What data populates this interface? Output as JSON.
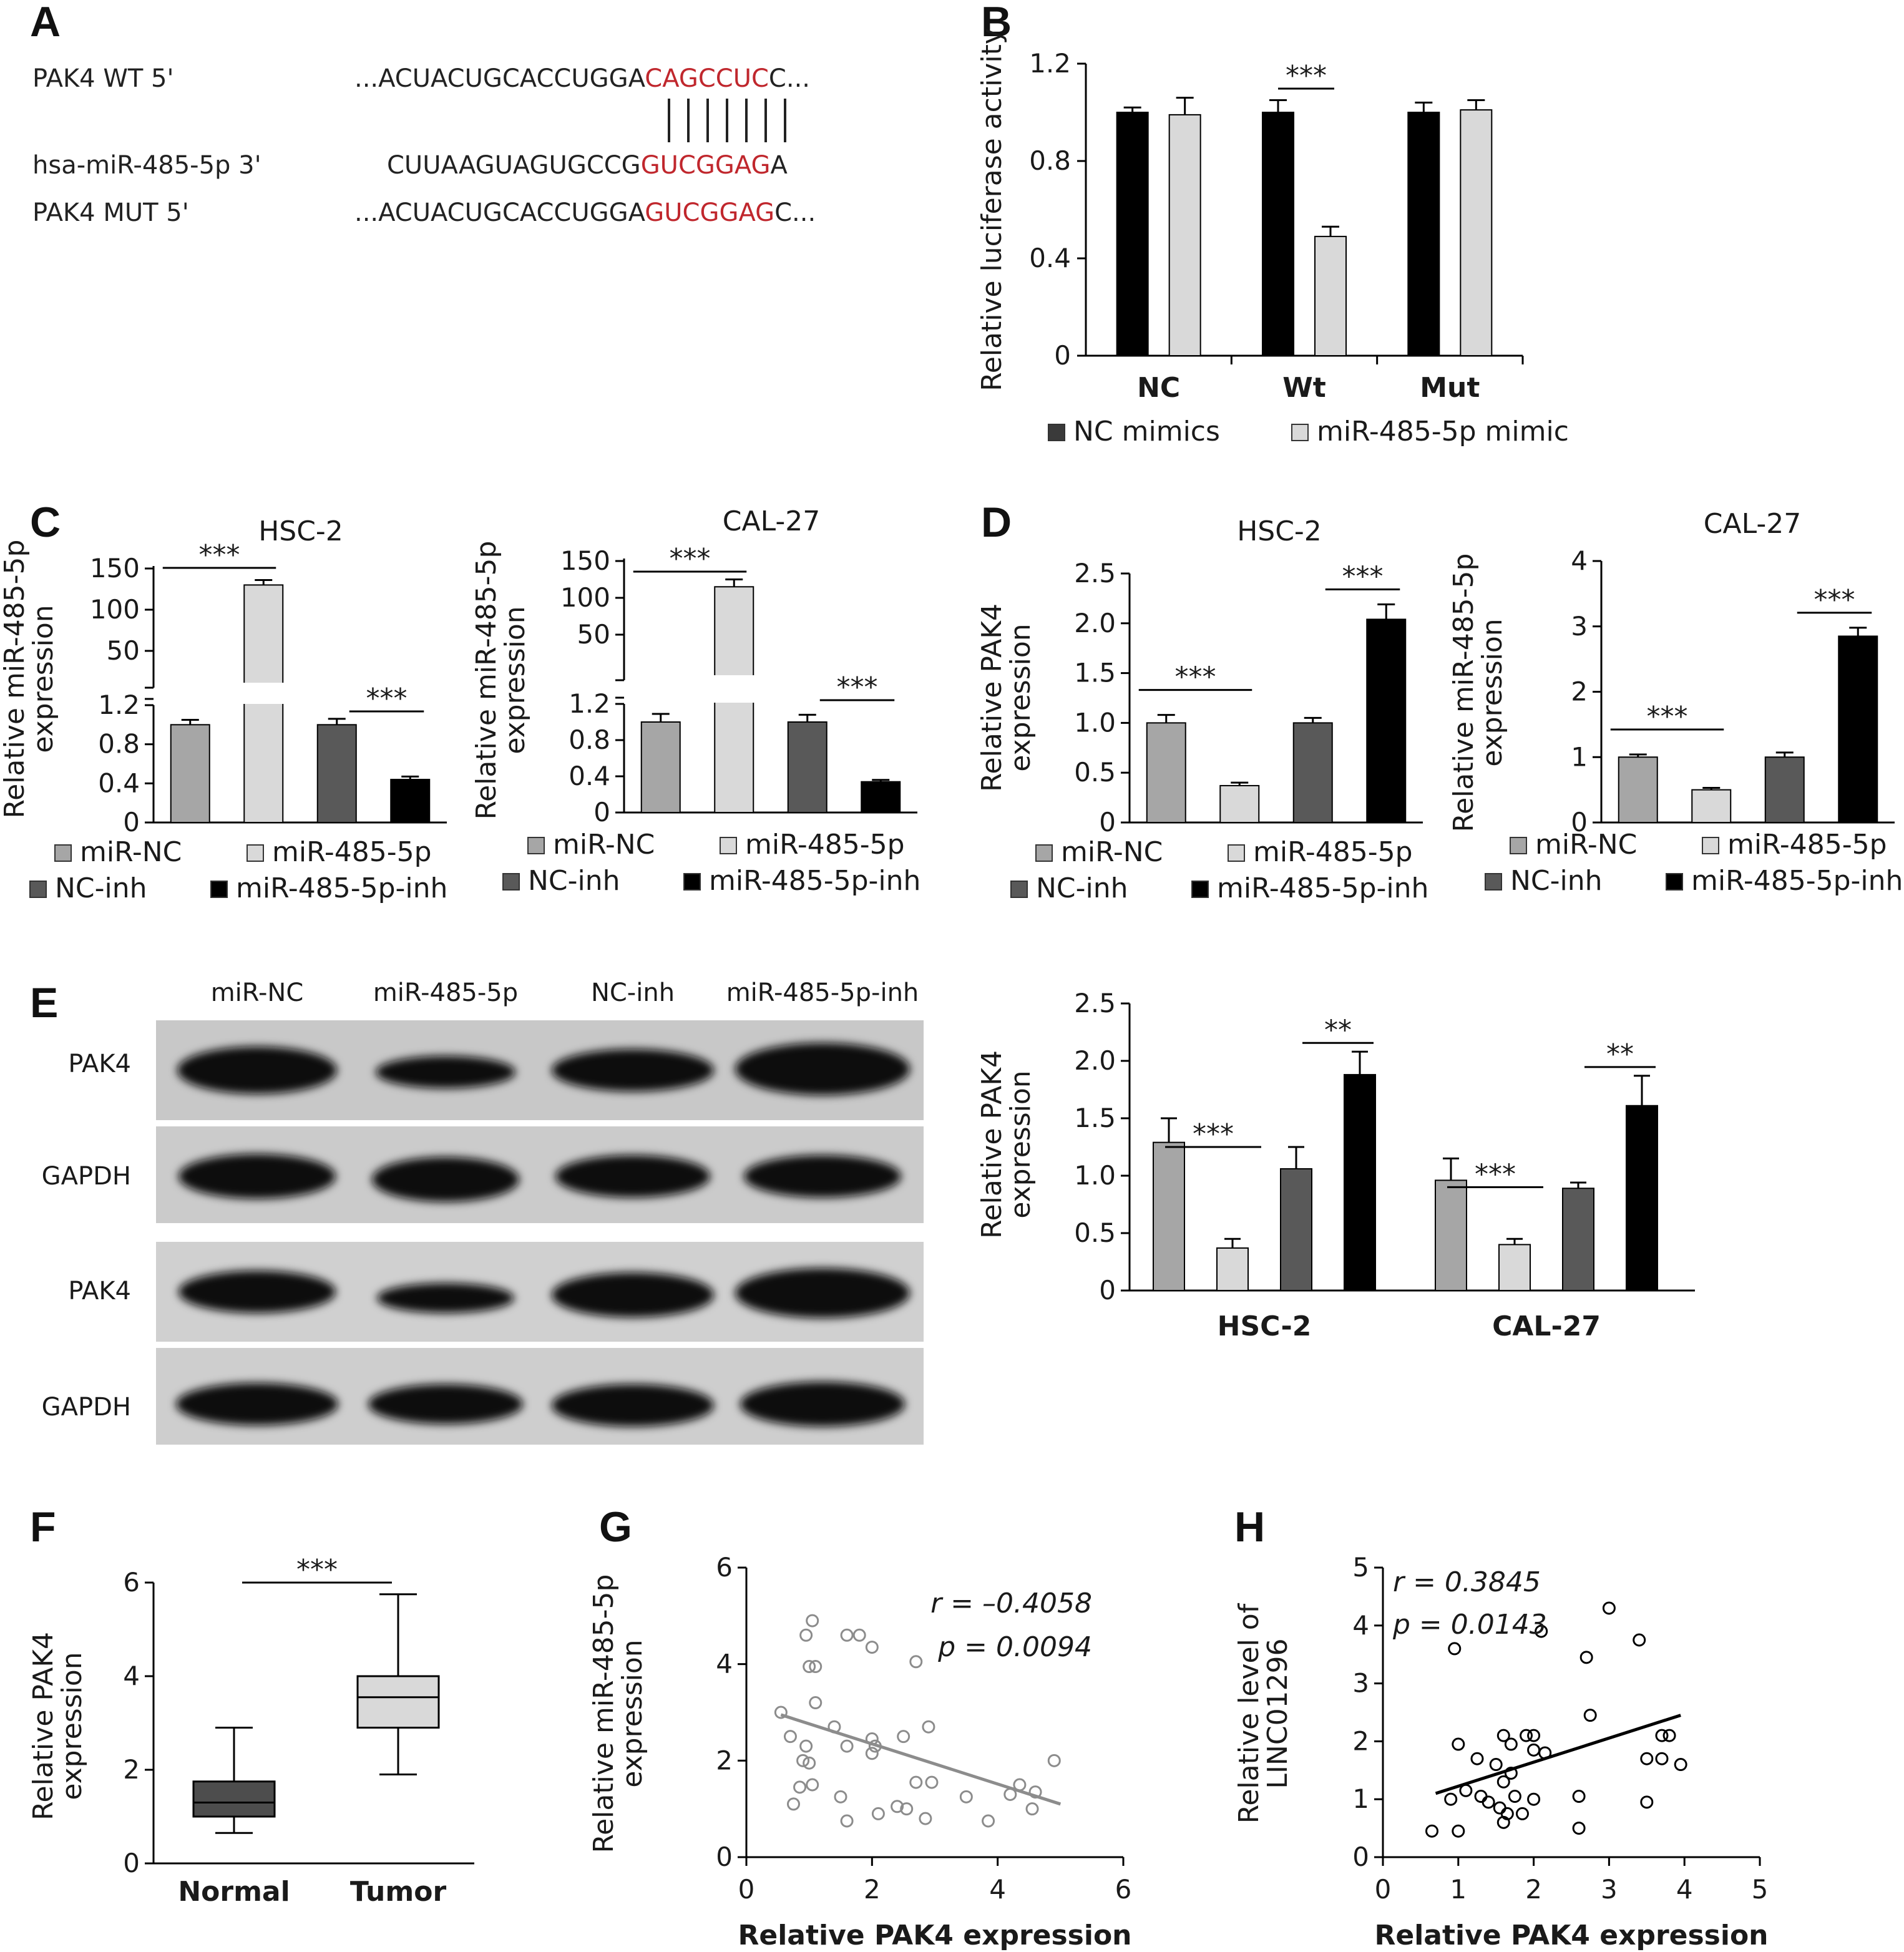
{
  "panels": {
    "A": {
      "letter": "A",
      "wt_label": "PAK4 WT 5'",
      "wt_pre": "...ACUACUGCACCUGGA",
      "wt_red": "CAGCCUC",
      "wt_post": "C...",
      "mir_label": "hsa-miR-485-5p 3'",
      "mir_pre": "CUUAAGUAGUGCCG",
      "mir_red": "GUCGGAG",
      "mir_post": "A",
      "mut_label": "PAK4 MUT 5'",
      "mut_pre": "...ACUACUGCACCUGGA",
      "mut_red": "GUCGGAG",
      "mut_post": "C..."
    },
    "B": {
      "letter": "B"
    },
    "C": {
      "letter": "C"
    },
    "D": {
      "letter": "D"
    },
    "E": {
      "letter": "E",
      "lanes": [
        "miR-NC",
        "miR-485-5p",
        "NC-inh",
        "miR-485-5p-inh"
      ],
      "blot_rows": [
        "PAK4",
        "GAPDH",
        "PAK4",
        "GAPDH"
      ]
    },
    "F": {
      "letter": "F"
    },
    "G": {
      "letter": "G"
    },
    "H": {
      "letter": "H"
    }
  },
  "chart_data": [
    {
      "id": "B",
      "type": "bar",
      "ylabel": "Relative luciferase activity",
      "categories": [
        "NC",
        "Wt",
        "Mut"
      ],
      "ylim": [
        0,
        1.2
      ],
      "yticks": [
        "0",
        "0.4",
        "0.8",
        "1.2"
      ],
      "series": [
        {
          "name": "NC mimics",
          "values": [
            1.0,
            1.0,
            1.0
          ],
          "errors": [
            0.02,
            0.05,
            0.04
          ],
          "color": "#000000"
        },
        {
          "name": "miR-485-5p mimic",
          "values": [
            0.99,
            0.49,
            1.01
          ],
          "errors": [
            0.07,
            0.04,
            0.04
          ],
          "color": "#d9d9d9"
        }
      ],
      "significance": [
        {
          "group": "Wt",
          "label": "***"
        }
      ],
      "legend": "bottom"
    },
    {
      "id": "C-HSC-2",
      "type": "bar",
      "title": "HSC-2",
      "ylabel": "Relative miR-485-5p expression",
      "categories": [
        "miR-NC",
        "miR-485-5p",
        "NC-inh",
        "miR-485-5p-inh"
      ],
      "values": [
        1.0,
        130,
        1.0,
        0.44
      ],
      "errors": [
        0.05,
        6,
        0.06,
        0.03
      ],
      "colors": [
        "#a6a6a6",
        "#d9d9d9",
        "#595959",
        "#000000"
      ],
      "axis_break": true,
      "yticks_lower": [
        "0",
        "0.4",
        "0.8",
        "1.2"
      ],
      "yticks_upper": [
        "50",
        "100",
        "150"
      ],
      "significance": [
        "***",
        "***"
      ],
      "legend": "bottom"
    },
    {
      "id": "C-CAL-27",
      "type": "bar",
      "title": "CAL-27",
      "ylabel": "Relative miR-485-5p expression",
      "categories": [
        "miR-NC",
        "miR-485-5p",
        "NC-inh",
        "miR-485-5p-inh"
      ],
      "values": [
        1.0,
        115,
        1.0,
        0.34
      ],
      "errors": [
        0.09,
        10,
        0.08,
        0.02
      ],
      "colors": [
        "#a6a6a6",
        "#d9d9d9",
        "#595959",
        "#000000"
      ],
      "axis_break": true,
      "yticks_lower": [
        "0",
        "0.4",
        "0.8",
        "1.2"
      ],
      "yticks_upper": [
        "50",
        "100",
        "150"
      ],
      "significance": [
        "***",
        "***"
      ],
      "legend": "bottom"
    },
    {
      "id": "D-HSC-2",
      "type": "bar",
      "title": "HSC-2",
      "ylabel": "Relative PAK4 expression",
      "categories": [
        "miR-NC",
        "miR-485-5p",
        "NC-inh",
        "miR-485-5p-inh"
      ],
      "values": [
        1.0,
        0.37,
        1.0,
        2.04
      ],
      "errors": [
        0.08,
        0.03,
        0.05,
        0.15
      ],
      "colors": [
        "#a6a6a6",
        "#d9d9d9",
        "#595959",
        "#000000"
      ],
      "ylim": [
        0,
        2.5
      ],
      "yticks": [
        "0",
        "0.5",
        "1.0",
        "1.5",
        "2.0",
        "2.5"
      ],
      "significance": [
        "***",
        "***"
      ],
      "legend": "bottom"
    },
    {
      "id": "D-CAL-27",
      "type": "bar",
      "title": "CAL-27",
      "ylabel": "Relative miR-485-5p expression",
      "categories": [
        "miR-NC",
        "miR-485-5p",
        "NC-inh",
        "miR-485-5p-inh"
      ],
      "values": [
        1.0,
        0.5,
        1.0,
        2.85
      ],
      "errors": [
        0.04,
        0.03,
        0.07,
        0.13
      ],
      "colors": [
        "#a6a6a6",
        "#d9d9d9",
        "#595959",
        "#000000"
      ],
      "ylim": [
        0,
        4
      ],
      "yticks": [
        "0",
        "1",
        "2",
        "3",
        "4"
      ],
      "significance": [
        "***",
        "***"
      ],
      "legend": "bottom"
    },
    {
      "id": "E",
      "type": "bar",
      "ylabel": "Relative PAK4 expression",
      "categories": [
        "HSC-2",
        "CAL-27"
      ],
      "ylim": [
        0,
        2.5
      ],
      "yticks": [
        "0",
        "0.5",
        "1.0",
        "1.5",
        "2.0",
        "2.5"
      ],
      "series": [
        {
          "name": "miR-NC",
          "values": [
            1.29,
            0.96
          ],
          "errors": [
            0.21,
            0.19
          ],
          "color": "#a6a6a6"
        },
        {
          "name": "miR-485-5p",
          "values": [
            0.37,
            0.4
          ],
          "errors": [
            0.08,
            0.05
          ],
          "color": "#d9d9d9"
        },
        {
          "name": "NC-inh",
          "values": [
            1.06,
            0.89
          ],
          "errors": [
            0.19,
            0.05
          ],
          "color": "#595959"
        },
        {
          "name": "miR-485-5p-inh",
          "values": [
            1.88,
            1.61
          ],
          "errors": [
            0.2,
            0.26
          ],
          "color": "#000000"
        }
      ],
      "significance": [
        [
          "***",
          "**"
        ],
        [
          "***",
          "**"
        ]
      ]
    },
    {
      "id": "F",
      "type": "box",
      "ylabel": "Relative PAK4 expression",
      "categories": [
        "Normal",
        "Tumor"
      ],
      "ylim": [
        0,
        6
      ],
      "yticks": [
        "0",
        "2",
        "4",
        "6"
      ],
      "boxes": [
        {
          "min": 0.65,
          "q1": 1.0,
          "median": 1.3,
          "q3": 1.75,
          "max": 2.9,
          "color": "#4d4d4d"
        },
        {
          "min": 1.9,
          "q1": 2.9,
          "median": 3.55,
          "q3": 4.0,
          "max": 5.75,
          "color": "#d9d9d9"
        }
      ],
      "significance": "***"
    },
    {
      "id": "G",
      "type": "scatter",
      "xlabel": "Relative PAK4 expression",
      "ylabel": "Relative miR-485-5p expression",
      "xlim": [
        0,
        6
      ],
      "ylim": [
        0,
        6
      ],
      "xticks": [
        "0",
        "2",
        "4",
        "6"
      ],
      "yticks": [
        "0",
        "2",
        "4",
        "6"
      ],
      "r_label": "r = –0.4058",
      "p_label": "p = 0.0094",
      "fit": [
        [
          0.55,
          2.95
        ],
        [
          5.0,
          1.1
        ]
      ],
      "point_color": "#8c8c8c",
      "points": [
        [
          1.05,
          4.9
        ],
        [
          0.95,
          4.6
        ],
        [
          1.6,
          4.6
        ],
        [
          1.8,
          4.6
        ],
        [
          2.0,
          4.35
        ],
        [
          1.0,
          3.95
        ],
        [
          1.1,
          3.95
        ],
        [
          2.7,
          4.05
        ],
        [
          0.55,
          3.0
        ],
        [
          1.1,
          3.2
        ],
        [
          1.4,
          2.7
        ],
        [
          0.7,
          2.5
        ],
        [
          0.95,
          2.3
        ],
        [
          1.6,
          2.3
        ],
        [
          2.0,
          2.45
        ],
        [
          2.05,
          2.3
        ],
        [
          2.0,
          2.15
        ],
        [
          2.5,
          2.5
        ],
        [
          2.9,
          2.7
        ],
        [
          0.9,
          2.0
        ],
        [
          1.0,
          1.95
        ],
        [
          0.85,
          1.45
        ],
        [
          1.05,
          1.5
        ],
        [
          1.5,
          1.25
        ],
        [
          2.4,
          1.05
        ],
        [
          2.55,
          1.0
        ],
        [
          2.7,
          1.55
        ],
        [
          2.95,
          1.55
        ],
        [
          0.75,
          1.1
        ],
        [
          1.6,
          0.75
        ],
        [
          2.1,
          0.9
        ],
        [
          2.85,
          0.8
        ],
        [
          3.5,
          1.25
        ],
        [
          4.2,
          1.3
        ],
        [
          4.35,
          1.5
        ],
        [
          4.6,
          1.35
        ],
        [
          4.9,
          2.0
        ],
        [
          3.85,
          0.75
        ],
        [
          4.55,
          1.0
        ]
      ]
    },
    {
      "id": "H",
      "type": "scatter",
      "xlabel": "Relative PAK4 expression",
      "ylabel": "Relative level of LINC01296",
      "xlim": [
        0,
        5
      ],
      "ylim": [
        0,
        5
      ],
      "xticks": [
        "0",
        "1",
        "2",
        "3",
        "4",
        "5"
      ],
      "yticks": [
        "0",
        "1",
        "2",
        "3",
        "4",
        "5"
      ],
      "r_label": "r = 0.3845",
      "p_label": "p = 0.0143",
      "fit": [
        [
          0.7,
          1.1
        ],
        [
          3.95,
          2.45
        ]
      ],
      "point_color": "#000000",
      "points": [
        [
          0.95,
          3.6
        ],
        [
          2.1,
          3.9
        ],
        [
          3.0,
          4.3
        ],
        [
          2.7,
          3.45
        ],
        [
          3.4,
          3.75
        ],
        [
          1.0,
          1.95
        ],
        [
          1.6,
          2.1
        ],
        [
          1.9,
          2.1
        ],
        [
          2.0,
          2.1
        ],
        [
          1.7,
          1.95
        ],
        [
          2.0,
          1.85
        ],
        [
          2.15,
          1.8
        ],
        [
          1.25,
          1.7
        ],
        [
          1.5,
          1.6
        ],
        [
          1.7,
          1.45
        ],
        [
          1.6,
          1.3
        ],
        [
          1.1,
          1.15
        ],
        [
          0.9,
          1.0
        ],
        [
          1.3,
          1.05
        ],
        [
          1.4,
          0.95
        ],
        [
          1.55,
          0.85
        ],
        [
          1.65,
          0.75
        ],
        [
          1.6,
          0.6
        ],
        [
          1.85,
          0.75
        ],
        [
          2.0,
          1.0
        ],
        [
          1.75,
          1.05
        ],
        [
          0.65,
          0.45
        ],
        [
          1.0,
          0.45
        ],
        [
          2.6,
          1.05
        ],
        [
          2.6,
          0.5
        ],
        [
          2.75,
          2.45
        ],
        [
          3.5,
          1.7
        ],
        [
          3.7,
          2.1
        ],
        [
          3.8,
          2.1
        ],
        [
          3.7,
          1.7
        ],
        [
          3.95,
          1.6
        ],
        [
          3.5,
          0.95
        ]
      ]
    }
  ]
}
